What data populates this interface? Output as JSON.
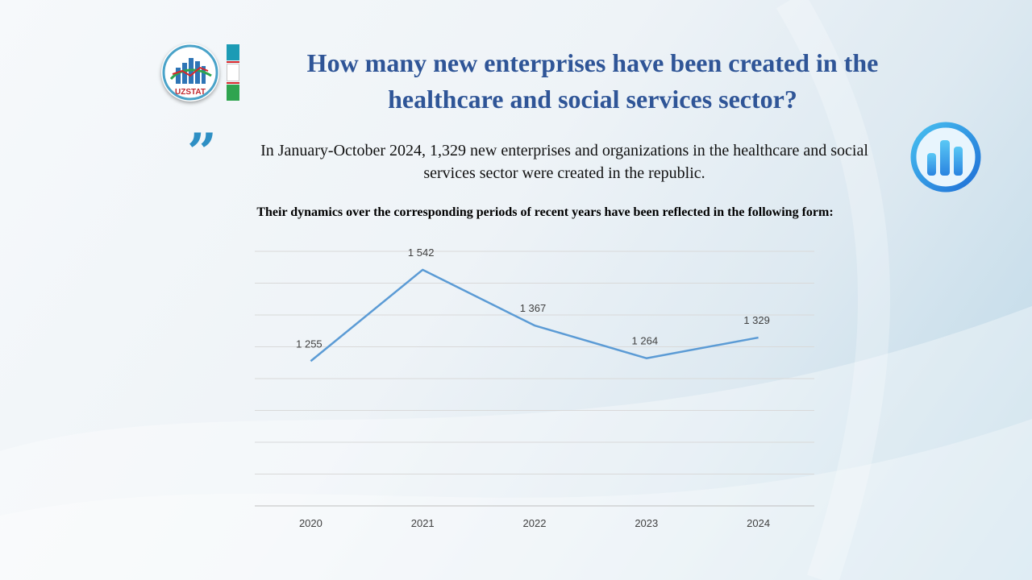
{
  "header": {
    "title": "How many new enterprises have been created in the healthcare and social services sector?",
    "logo_text": "UZSTAT"
  },
  "lead": {
    "text": "In January-October 2024, 1,329 new enterprises and organizations in the healthcare and social services sector were created in the republic."
  },
  "subtitle": "Their dynamics  over the corresponding  periods  of recent years have been reflected in the following  form:",
  "icons": {
    "quote": "quote-icon",
    "chart_badge": "bar-chart-icon",
    "logo": "uzstat-logo-icon",
    "flag": "uzbekistan-flag-icon"
  },
  "colors": {
    "title": "#2f5597",
    "line": "#5b9bd5",
    "quote": "#2e8fc4",
    "gridline": "#d9d9d9"
  },
  "chart_data": {
    "type": "line",
    "title": "",
    "xlabel": "",
    "ylabel": "",
    "categories": [
      "2020",
      "2021",
      "2022",
      "2023",
      "2024"
    ],
    "series": [
      {
        "name": "New enterprises",
        "values": [
          1255,
          1542,
          1367,
          1264,
          1329
        ]
      }
    ],
    "data_labels": [
      "1 255",
      "1 542",
      "1 367",
      "1 264",
      "1 329"
    ],
    "ylim": [
      800,
      1600
    ],
    "ytick_step": 100,
    "y_axis_visible": false,
    "grid": true,
    "legend": "none"
  }
}
